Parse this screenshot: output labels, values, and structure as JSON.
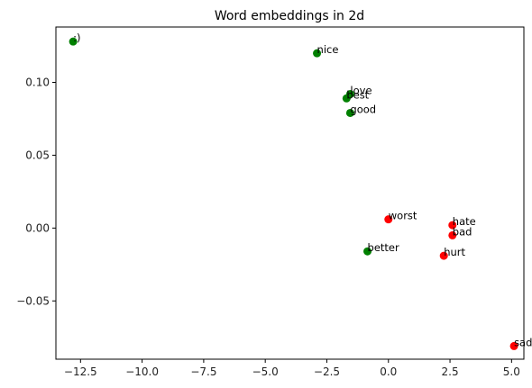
{
  "chart_data": {
    "type": "scatter",
    "title": "Word embeddings in 2d",
    "xlabel": "",
    "ylabel": "",
    "xlim": [
      -13.5,
      5.5
    ],
    "ylim": [
      -0.09,
      0.138
    ],
    "grid": false,
    "colors": {
      "positive": "#008000",
      "negative": "#ff0000"
    },
    "x_ticks": [
      {
        "value": -12.5,
        "label": "−12.5"
      },
      {
        "value": -10.0,
        "label": "−10.0"
      },
      {
        "value": -7.5,
        "label": "−7.5"
      },
      {
        "value": -5.0,
        "label": "−5.0"
      },
      {
        "value": -2.5,
        "label": "−2.5"
      },
      {
        "value": 0.0,
        "label": "0.0"
      },
      {
        "value": 2.5,
        "label": "2.5"
      },
      {
        "value": 5.0,
        "label": "5.0"
      }
    ],
    "y_ticks": [
      {
        "value": -0.05,
        "label": "−0.05"
      },
      {
        "value": 0.0,
        "label": "0.00"
      },
      {
        "value": 0.05,
        "label": "0.05"
      },
      {
        "value": 0.1,
        "label": "0.10"
      }
    ],
    "points": [
      {
        "label": ":)",
        "x": -12.8,
        "y": 0.128,
        "group": "positive"
      },
      {
        "label": "nice",
        "x": -2.9,
        "y": 0.12,
        "group": "positive"
      },
      {
        "label": "love",
        "x": -1.55,
        "y": 0.092,
        "group": "positive"
      },
      {
        "label": "best",
        "x": -1.7,
        "y": 0.089,
        "group": "positive"
      },
      {
        "label": "good",
        "x": -1.55,
        "y": 0.079,
        "group": "positive"
      },
      {
        "label": "better",
        "x": -0.85,
        "y": -0.016,
        "group": "positive"
      },
      {
        "label": "worst",
        "x": 0.0,
        "y": 0.006,
        "group": "negative"
      },
      {
        "label": "hate",
        "x": 2.6,
        "y": 0.002,
        "group": "negative"
      },
      {
        "label": "bad",
        "x": 2.6,
        "y": -0.005,
        "group": "negative"
      },
      {
        "label": "hurt",
        "x": 2.25,
        "y": -0.019,
        "group": "negative"
      },
      {
        "label": "sad",
        "x": 5.1,
        "y": -0.081,
        "group": "negative"
      }
    ]
  }
}
